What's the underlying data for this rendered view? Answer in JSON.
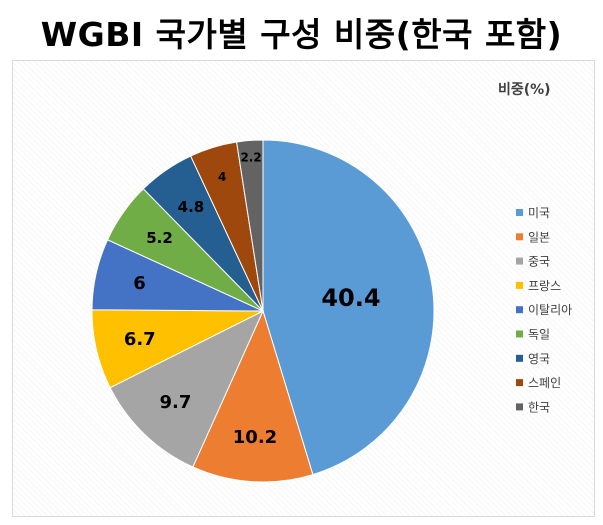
{
  "page": {
    "title": "WGBI 국가별 구성 비중(한국 포함)"
  },
  "chart_data": {
    "type": "pie",
    "title": "WGBI 국가별 구성 비중(한국 포함)",
    "subtitle": "비중(%)",
    "legend_position": "right",
    "slices": [
      {
        "label": "미국",
        "value": 40.4,
        "color": "#5b9bd5"
      },
      {
        "label": "일본",
        "value": 10.2,
        "color": "#ed7d31"
      },
      {
        "label": "중국",
        "value": 9.7,
        "color": "#a5a5a5"
      },
      {
        "label": "프랑스",
        "value": 6.7,
        "color": "#ffc000"
      },
      {
        "label": "이탈리아",
        "value": 6,
        "color": "#4472c4"
      },
      {
        "label": "독일",
        "value": 5.2,
        "color": "#70ad47"
      },
      {
        "label": "영국",
        "value": 4.8,
        "color": "#255e91"
      },
      {
        "label": "스페인",
        "value": 4,
        "color": "#9e480e"
      },
      {
        "label": "한국",
        "value": 2.2,
        "color": "#636363"
      }
    ]
  }
}
